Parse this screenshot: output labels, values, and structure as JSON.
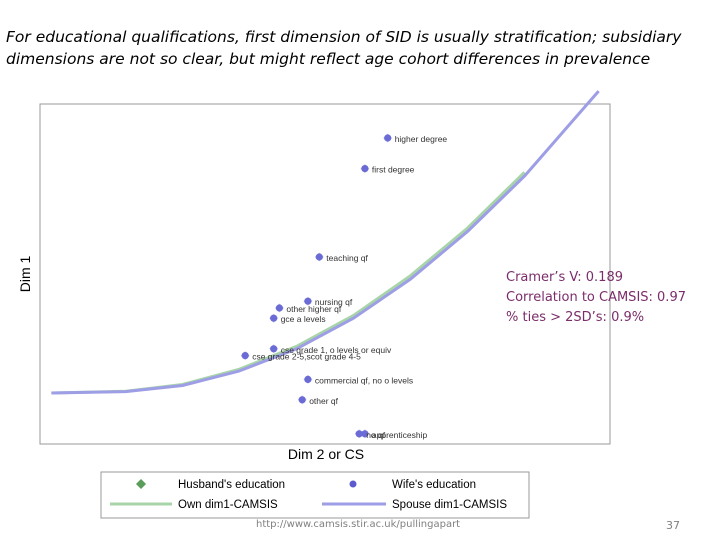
{
  "slide": {
    "title_line1": "For educational qualifications, first dimension of SID is usually stratification; subsidiary",
    "title_line2": "dimensions are not so clear, but might reflect age cohort differences in prevalence",
    "stats": [
      "Cramer’s V: 0.189",
      "Correlation to CAMSIS: 0.97",
      "% ties > 2SD’s: 0.9%"
    ],
    "footer_url": "http://www.camsis.stir.ac.uk/pullingapart",
    "page_number": "37"
  },
  "chart_data": {
    "type": "scatter",
    "title": "",
    "xlabel": "Dim 2 or CS",
    "ylabel": "Dim 1",
    "xlim": [
      0,
      100
    ],
    "ylim": [
      0,
      100
    ],
    "axis_ticks_shown": false,
    "grid": false,
    "legend_position": "bottom",
    "colors": {
      "husband": "#5a9c5a",
      "wife": "#5b5bcf",
      "own_curve": "#a8d5a8",
      "spouse_curve": "#9e9ee6"
    },
    "series": [
      {
        "name": "Husband's education",
        "marker": "diamond",
        "labels": [
          "higher degree",
          "first degree",
          "teaching qf",
          "nursing qf",
          "other higher qf",
          "gce a levels",
          "cse grade 1, o levels or equiv",
          "cse grade 2-5,scot grade 4-5",
          "commercial qf, no o levels",
          "other qf",
          "apprenticeship",
          "no qf"
        ],
        "x": [
          61,
          57,
          49,
          47,
          42,
          41,
          41,
          36,
          47,
          46,
          57,
          56
        ],
        "y": [
          90,
          81,
          55,
          42,
          40,
          37,
          28,
          26,
          19,
          13,
          3,
          3
        ]
      },
      {
        "name": "Wife's education",
        "marker": "circle",
        "labels": [
          "higher degree",
          "first degree",
          "teaching qf",
          "nursing qf",
          "other higher qf",
          "gce a levels",
          "cse grade 1, o levels or equiv",
          "cse grade 2-5,scot grade 4-5",
          "commercial qf, no o levels",
          "other qf",
          "apprenticeship",
          "no qf"
        ],
        "x": [
          61,
          57,
          49,
          47,
          42,
          41,
          41,
          36,
          47,
          46,
          57,
          56
        ],
        "y": [
          90,
          81,
          55,
          42,
          40,
          37,
          28,
          26,
          19,
          13,
          3,
          3
        ]
      },
      {
        "name": "Own dim1-CAMSIS",
        "type": "line",
        "x": [
          2,
          15,
          25,
          35,
          45,
          55,
          65,
          75,
          85
        ],
        "y": [
          15,
          15.5,
          17.5,
          22,
          28.7,
          37.8,
          49.5,
          63.5,
          79.9
        ]
      },
      {
        "name": "Spouse dim1-CAMSIS",
        "type": "line",
        "x": [
          2,
          15,
          25,
          35,
          45,
          55,
          65,
          75,
          85,
          98
        ],
        "y": [
          15,
          15.4,
          17.2,
          21.5,
          28,
          37,
          48.5,
          62.5,
          78.8,
          103.8
        ]
      }
    ]
  }
}
